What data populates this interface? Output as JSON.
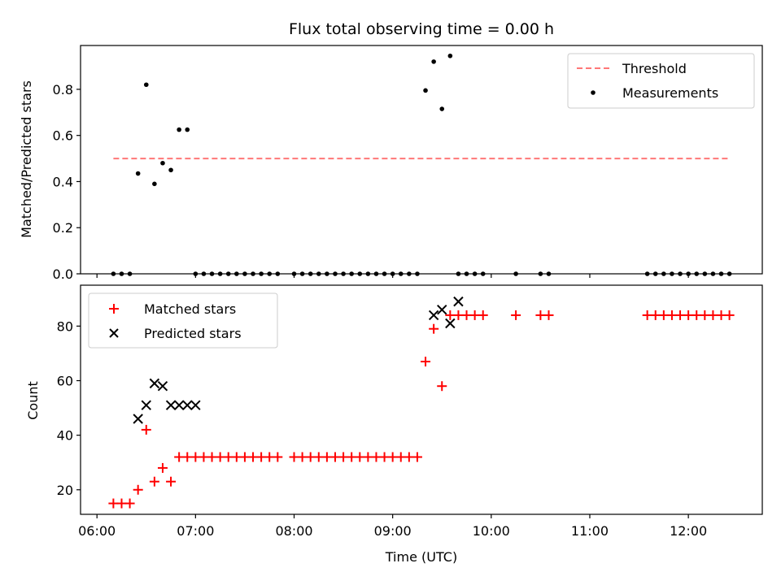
{
  "chart_data": [
    {
      "type": "scatter",
      "title": "Flux total observing time = 0.00 h",
      "ylabel": "Matched/Predicted stars",
      "xlabel": "",
      "xlim": [
        "05:50",
        "12:45"
      ],
      "ylim": [
        0,
        0.99
      ],
      "yticks": [
        0.0,
        0.2,
        0.4,
        0.6,
        0.8
      ],
      "ytick_labels": [
        "0.0",
        "0.2",
        "0.4",
        "0.6",
        "0.8"
      ],
      "xticks": [
        "06:00",
        "07:00",
        "08:00",
        "09:00",
        "10:00",
        "11:00",
        "12:00"
      ],
      "show_xtick_labels": false,
      "grid": false,
      "legend_position": "top-right",
      "threshold": {
        "name": "Threshold",
        "value": 0.5,
        "x_range": [
          "06:10",
          "12:25"
        ],
        "color": "#ff7777",
        "style": "dashed"
      },
      "series": [
        {
          "name": "Measurements",
          "marker": "dot",
          "color": "#000000",
          "x": [
            "06:10",
            "06:15",
            "06:20",
            "06:25",
            "06:30",
            "06:35",
            "06:40",
            "06:45",
            "06:50",
            "06:55",
            "07:00",
            "07:05",
            "07:10",
            "07:15",
            "07:20",
            "07:25",
            "07:30",
            "07:35",
            "07:40",
            "07:45",
            "07:50",
            "08:00",
            "08:05",
            "08:10",
            "08:15",
            "08:20",
            "08:25",
            "08:30",
            "08:35",
            "08:40",
            "08:45",
            "08:50",
            "08:55",
            "09:00",
            "09:05",
            "09:10",
            "09:15",
            "09:20",
            "09:25",
            "09:30",
            "09:35",
            "09:40",
            "09:45",
            "09:50",
            "09:55",
            "10:15",
            "10:30",
            "10:35",
            "11:35",
            "11:40",
            "11:45",
            "11:50",
            "11:55",
            "12:00",
            "12:05",
            "12:10",
            "12:15",
            "12:20",
            "12:25"
          ],
          "y": [
            0,
            0,
            0,
            0.435,
            0.82,
            0.39,
            0.48,
            0.45,
            0.625,
            0.625,
            0,
            0,
            0,
            0,
            0,
            0,
            0,
            0,
            0,
            0,
            0,
            0,
            0,
            0,
            0,
            0,
            0,
            0,
            0,
            0,
            0,
            0,
            0,
            0,
            0,
            0,
            0,
            0.795,
            0.92,
            0.715,
            0.945,
            0,
            0,
            0,
            0,
            0,
            0,
            0,
            0,
            0,
            0,
            0,
            0,
            0,
            0,
            0,
            0,
            0,
            0
          ]
        }
      ]
    },
    {
      "type": "scatter",
      "title": "",
      "ylabel": "Count",
      "xlabel": "Time (UTC)",
      "xlim": [
        "05:50",
        "12:45"
      ],
      "ylim": [
        11,
        95
      ],
      "yticks": [
        20,
        40,
        60,
        80
      ],
      "ytick_labels": [
        "20",
        "40",
        "60",
        "80"
      ],
      "xticks": [
        "06:00",
        "07:00",
        "08:00",
        "09:00",
        "10:00",
        "11:00",
        "12:00"
      ],
      "xtick_labels": [
        "06:00",
        "07:00",
        "08:00",
        "09:00",
        "10:00",
        "11:00",
        "12:00"
      ],
      "grid": false,
      "legend_position": "top-left",
      "series": [
        {
          "name": "Matched stars",
          "marker": "plus",
          "color": "#ff0000",
          "x": [
            "06:10",
            "06:15",
            "06:20",
            "06:25",
            "06:30",
            "06:35",
            "06:40",
            "06:45",
            "06:50",
            "06:55",
            "07:00",
            "07:05",
            "07:10",
            "07:15",
            "07:20",
            "07:25",
            "07:30",
            "07:35",
            "07:40",
            "07:45",
            "07:50",
            "08:00",
            "08:05",
            "08:10",
            "08:15",
            "08:20",
            "08:25",
            "08:30",
            "08:35",
            "08:40",
            "08:45",
            "08:50",
            "08:55",
            "09:00",
            "09:05",
            "09:10",
            "09:15",
            "09:20",
            "09:25",
            "09:30",
            "09:35",
            "09:40",
            "09:45",
            "09:50",
            "09:55",
            "10:15",
            "10:30",
            "10:35",
            "11:35",
            "11:40",
            "11:45",
            "11:50",
            "11:55",
            "12:00",
            "12:05",
            "12:10",
            "12:15",
            "12:20",
            "12:25"
          ],
          "y": [
            15,
            15,
            15,
            20,
            42,
            23,
            28,
            23,
            32,
            32,
            32,
            32,
            32,
            32,
            32,
            32,
            32,
            32,
            32,
            32,
            32,
            32,
            32,
            32,
            32,
            32,
            32,
            32,
            32,
            32,
            32,
            32,
            32,
            32,
            32,
            32,
            32,
            67,
            79,
            58,
            84,
            84,
            84,
            84,
            84,
            84,
            84,
            84,
            84,
            84,
            84,
            84,
            84,
            84,
            84,
            84,
            84,
            84,
            84
          ]
        },
        {
          "name": "Predicted stars",
          "marker": "x",
          "color": "#000000",
          "x": [
            "06:25",
            "06:30",
            "06:35",
            "06:40",
            "06:45",
            "06:50",
            "06:55",
            "07:00",
            "09:25",
            "09:30",
            "09:35",
            "09:40"
          ],
          "y": [
            46,
            51,
            59,
            58,
            51,
            51,
            51,
            51,
            84,
            86,
            81,
            89
          ]
        }
      ]
    }
  ]
}
